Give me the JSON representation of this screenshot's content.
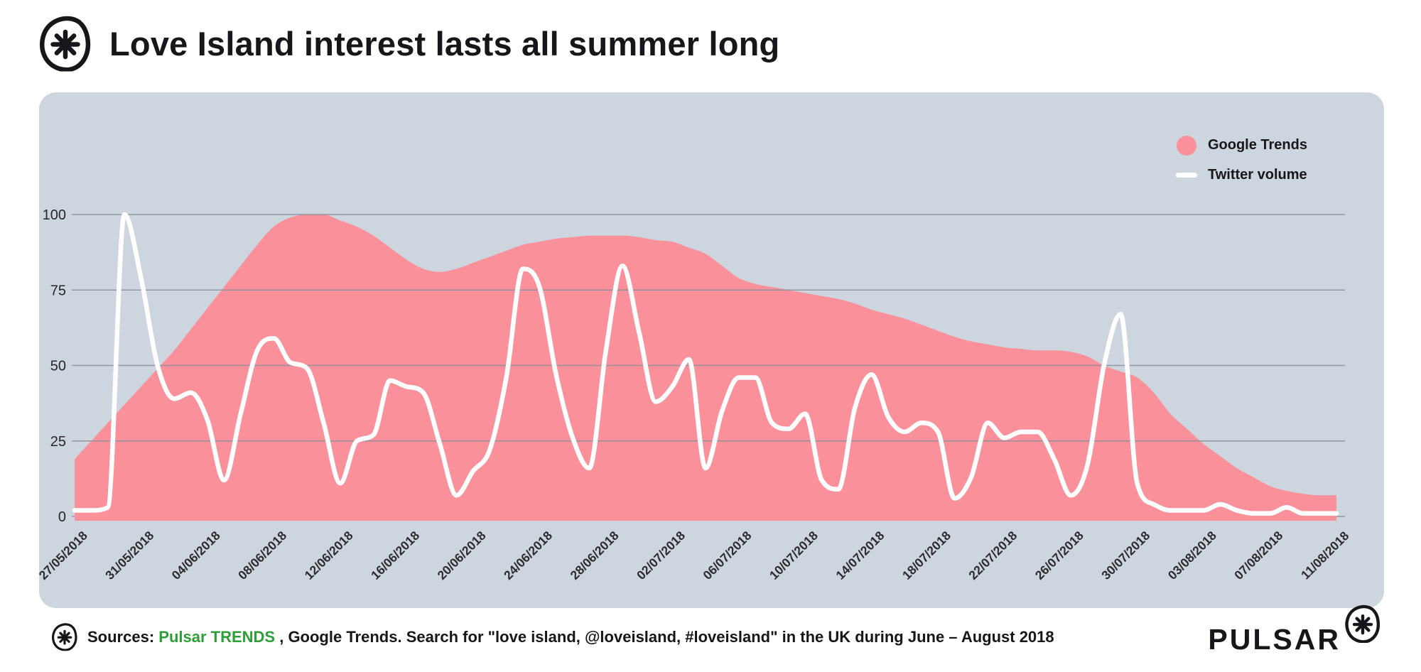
{
  "header": {
    "title": "Love Island interest lasts all summer long"
  },
  "legend": {
    "items": [
      {
        "label": "Google Trends",
        "swatch": "circle",
        "color": "#FA9099"
      },
      {
        "label": "Twitter volume",
        "swatch": "line",
        "color": "#FFFFFF"
      }
    ]
  },
  "footer": {
    "sources_prefix": "Sources:",
    "source_link": "Pulsar TRENDS",
    "sources_rest": " , Google Trends. Search for \"love island, @loveisland, #loveisland\" in the UK during June – August 2018",
    "brand": "PULSAR"
  },
  "colors": {
    "area_pink": "#FA9099",
    "panel_bg": "#CDD5DE",
    "line_white": "#FFFFFF",
    "grid": "#8A929C",
    "text": "#17171B",
    "source_green": "#2E9E38"
  },
  "chart_data": {
    "type": "area+line",
    "title": "Love Island interest lasts all summer long",
    "x_start": "27/05/2018",
    "x_end": "11/08/2018",
    "x_step_days": 1,
    "x_tick_every": 4,
    "x_tick_labels": [
      "27/05/2018",
      "31/05/2018",
      "04/06/2018",
      "08/06/2018",
      "12/06/2018",
      "16/06/2018",
      "20/06/2018",
      "24/06/2018",
      "28/06/2018",
      "02/07/2018",
      "06/07/2018",
      "10/07/2018",
      "14/07/2018",
      "18/07/2018",
      "22/07/2018",
      "26/07/2018",
      "30/07/2018",
      "03/08/2018",
      "07/08/2018",
      "11/08/2018"
    ],
    "y_ticks": [
      0,
      25,
      50,
      75,
      100
    ],
    "ylim": [
      0,
      100
    ],
    "grid": "horizontal",
    "legend_position": "top-right",
    "series": [
      {
        "name": "Google Trends",
        "type": "area",
        "color": "#FA9099",
        "values": [
          19,
          25,
          31,
          37,
          43,
          49,
          55,
          62,
          69,
          76,
          83,
          90,
          96,
          99,
          100,
          100,
          98,
          96,
          93,
          89,
          85,
          82,
          81,
          82,
          84,
          86,
          88,
          90,
          91,
          92,
          92.5,
          93,
          93,
          93,
          92.5,
          91.5,
          91,
          89,
          87,
          83,
          79,
          77,
          76,
          75,
          74,
          73,
          72,
          70.5,
          68.5,
          67,
          65.5,
          63.5,
          61.5,
          59.5,
          58,
          57,
          56,
          55.5,
          55,
          55,
          54.5,
          53,
          50,
          48,
          46,
          41,
          34,
          29,
          24,
          20,
          16,
          13,
          10,
          8.5,
          7.5,
          7,
          7
        ]
      },
      {
        "name": "Twitter volume",
        "type": "line",
        "color": "#FFFFFF",
        "values": [
          2,
          2,
          3,
          100,
          79,
          50,
          39,
          41,
          32,
          12,
          34,
          55,
          59,
          51,
          49,
          31,
          11,
          25,
          27,
          45,
          43,
          41,
          24,
          7,
          15,
          22,
          46,
          82,
          76,
          47,
          26,
          16,
          55,
          83,
          61,
          38,
          43,
          52,
          16,
          35,
          46,
          46,
          31,
          29,
          34,
          12,
          9,
          36,
          47,
          33,
          28,
          31,
          28,
          6,
          13,
          31,
          26,
          28,
          28,
          19,
          7,
          17,
          50,
          67,
          11,
          4,
          2,
          2,
          2,
          4,
          2,
          1,
          1,
          3,
          1,
          1,
          1
        ]
      }
    ]
  }
}
